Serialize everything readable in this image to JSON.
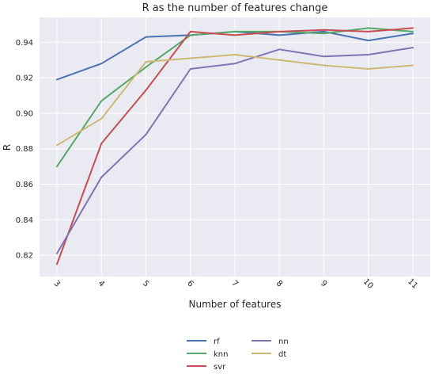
{
  "chart_data": {
    "type": "line",
    "title": "R as the number of features change",
    "xlabel": "Number of features",
    "ylabel": "R",
    "x": [
      3,
      4,
      5,
      6,
      7,
      8,
      9,
      10,
      11
    ],
    "x_tick_labels": [
      "3",
      "4",
      "5",
      "6",
      "7",
      "8",
      "9",
      "10",
      "11"
    ],
    "ylim": [
      0.808,
      0.954
    ],
    "y_ticks": [
      0.82,
      0.84,
      0.86,
      0.88,
      0.9,
      0.92,
      0.94
    ],
    "y_tick_labels": [
      "0.82",
      "0.84",
      "0.86",
      "0.88",
      "0.90",
      "0.92",
      "0.94"
    ],
    "grid": true,
    "background": "#eaeaf2",
    "legend_placement": "bottom-center",
    "series": [
      {
        "name": "rf",
        "color": "#4c72b0",
        "values": [
          0.919,
          0.928,
          0.943,
          0.944,
          0.946,
          0.944,
          0.946,
          0.941,
          0.945
        ]
      },
      {
        "name": "knn",
        "color": "#55a868",
        "values": [
          0.87,
          0.907,
          0.926,
          0.944,
          0.946,
          0.946,
          0.945,
          0.948,
          0.946
        ]
      },
      {
        "name": "svr",
        "color": "#c44e52",
        "values": [
          0.815,
          0.883,
          0.913,
          0.946,
          0.944,
          0.946,
          0.947,
          0.946,
          0.948
        ]
      },
      {
        "name": "nn",
        "color": "#8172b2",
        "values": [
          0.821,
          0.864,
          0.888,
          0.925,
          0.928,
          0.936,
          0.932,
          0.933,
          0.937
        ]
      },
      {
        "name": "dt",
        "color": "#ccb974",
        "values": [
          0.882,
          0.897,
          0.929,
          0.931,
          0.933,
          0.93,
          0.927,
          0.925,
          0.927
        ]
      }
    ]
  }
}
